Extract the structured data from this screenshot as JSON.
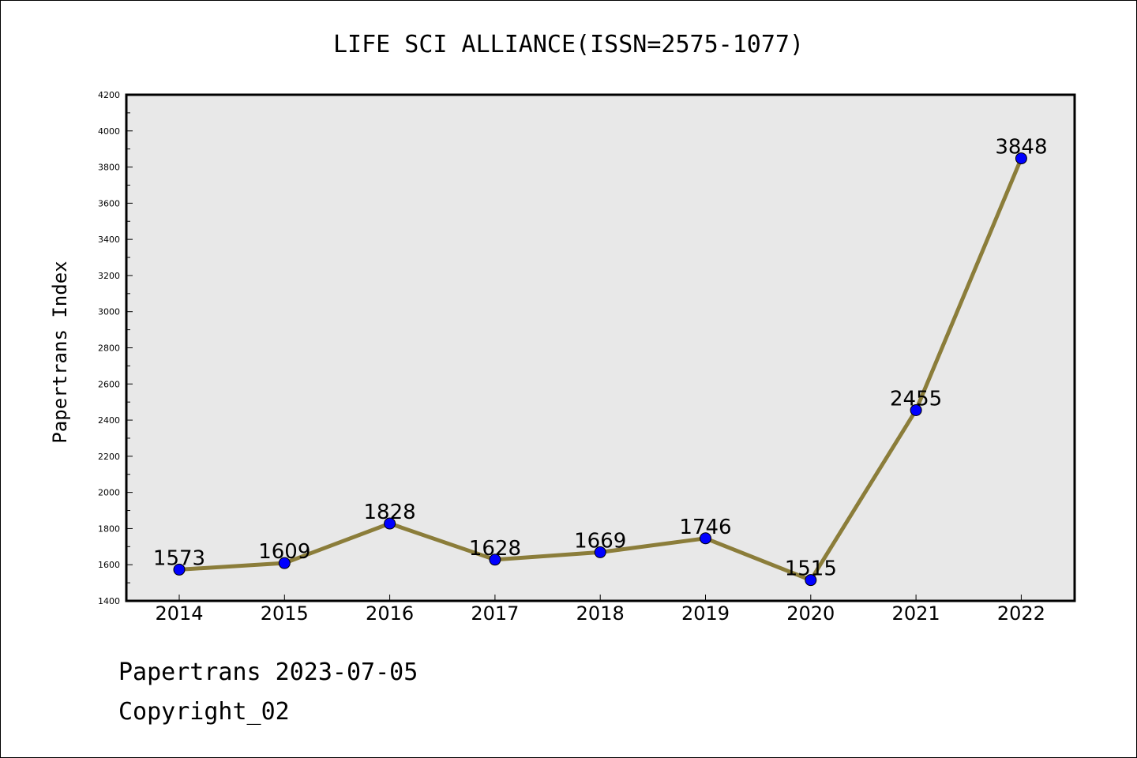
{
  "chart_data": {
    "type": "line",
    "title": "LIFE SCI ALLIANCE(ISSN=2575-1077)",
    "ylabel": "Papertrans Index",
    "xlabel": "",
    "categories": [
      "2014",
      "2015",
      "2016",
      "2017",
      "2018",
      "2019",
      "2020",
      "2021",
      "2022"
    ],
    "values": [
      1573,
      1609,
      1828,
      1628,
      1669,
      1746,
      1515,
      2455,
      3848
    ],
    "data_labels": [
      "1573",
      "1609",
      "1828",
      "1628",
      "1669",
      "1746",
      "1515",
      "2455",
      "3848"
    ],
    "ylim": [
      1400,
      4200
    ],
    "yticks": [
      1400,
      1600,
      1800,
      2000,
      2200,
      2400,
      2600,
      2800,
      3000,
      3200,
      3400,
      3600,
      3800,
      4000,
      4200
    ],
    "grid": false,
    "colors": {
      "line": "#8b7d3a",
      "marker": "#0000ff",
      "plot_background": "#e8e8e8"
    }
  },
  "footer": {
    "line1": "Papertrans 2023-07-05",
    "line2": "Copyright_02"
  }
}
